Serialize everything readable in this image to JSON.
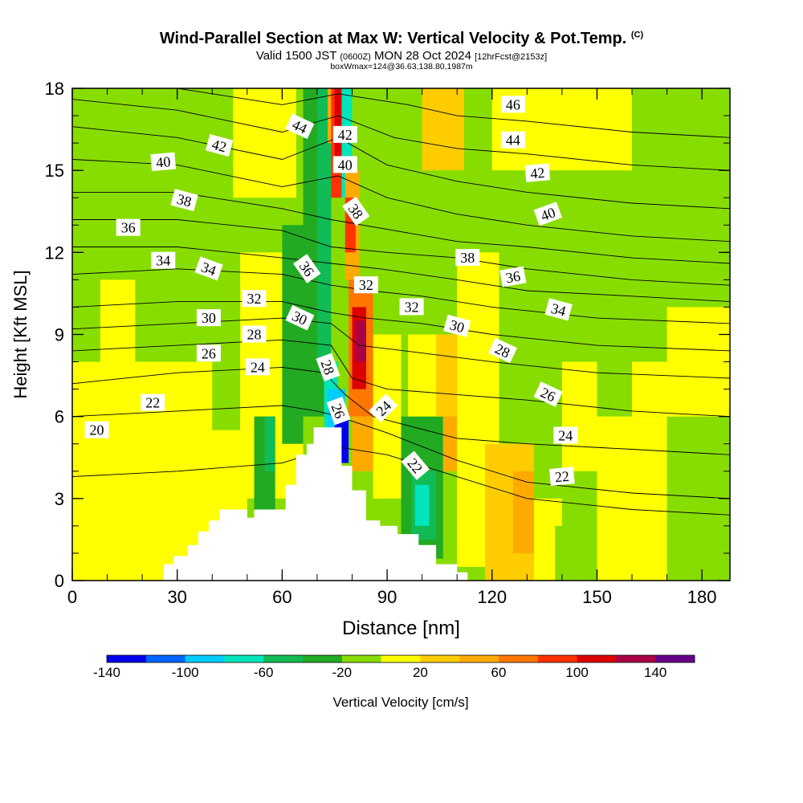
{
  "header": {
    "title": "Wind-Parallel Section at Max W: Vertical Velocity & Pot.Temp.",
    "copyright_mark": "(C)",
    "valid_prefix": "Valid 1500 JST",
    "utc_time": "(0600Z)",
    "valid_date": "MON 28 Oct 2024",
    "forecast_info": "[12hrFcst@2153z]",
    "box_info": "boxWmax=124@36.63,138.80,1987m"
  },
  "colors": {
    "level_colors": [
      "#0000ee",
      "#0066ff",
      "#00ccff",
      "#00e5bb",
      "#11bb55",
      "#22aa22",
      "#88dd00",
      "#ffff00",
      "#ffcc00",
      "#ffaa00",
      "#ff7700",
      "#ff3300",
      "#dd0000",
      "#aa0044",
      "#660088"
    ],
    "terrain": "#ffffff",
    "contour": "#000000"
  },
  "chart_data": {
    "type": "heatmap",
    "title": "Wind-Parallel Section at Max W: Vertical Velocity & Pot.Temp.",
    "xlabel": "Distance [nm]",
    "ylabel": "Height [Kft MSL]",
    "xlim": [
      0,
      188
    ],
    "ylim": [
      0,
      18
    ],
    "x_ticks": [
      0,
      30,
      60,
      90,
      120,
      150,
      180
    ],
    "y_ticks": [
      0,
      3,
      6,
      9,
      12,
      15,
      18
    ],
    "colorbar": {
      "label": "Vertical Velocity [cm/s]",
      "range": [
        -140,
        160
      ],
      "step": 20,
      "tick_values": [
        -140,
        -100,
        -60,
        -20,
        20,
        60,
        100,
        140
      ]
    },
    "terrain_profile": [
      [
        0,
        0
      ],
      [
        25,
        0
      ],
      [
        26,
        0.6
      ],
      [
        29,
        0.9
      ],
      [
        33,
        1.3
      ],
      [
        36,
        1.8
      ],
      [
        39,
        2.2
      ],
      [
        42,
        2.6
      ],
      [
        48,
        2.6
      ],
      [
        50,
        2.3
      ],
      [
        52,
        2.6
      ],
      [
        58,
        2.6
      ],
      [
        61,
        3.5
      ],
      [
        64,
        4.6
      ],
      [
        67,
        5.0
      ],
      [
        69,
        5.6
      ],
      [
        75,
        5.6
      ],
      [
        77,
        4.2
      ],
      [
        80,
        3.3
      ],
      [
        84,
        2.2
      ],
      [
        88,
        2.0
      ],
      [
        93,
        1.7
      ],
      [
        99,
        1.3
      ],
      [
        104,
        0.6
      ],
      [
        110,
        0.3
      ],
      [
        113,
        0
      ],
      [
        188,
        0
      ]
    ],
    "vertical_velocity_cells": [
      {
        "x0": 0,
        "x1": 188,
        "y0": 0,
        "y1": 18,
        "value": -10
      },
      {
        "x0": 0,
        "x1": 50,
        "y0": 0,
        "y1": 5.5,
        "value": 10
      },
      {
        "x0": 0,
        "x1": 40,
        "y0": 5.5,
        "y1": 8,
        "value": 10
      },
      {
        "x0": 8,
        "x1": 18,
        "y0": 8,
        "y1": 11,
        "value": 10
      },
      {
        "x0": 20,
        "x1": 60,
        "y0": 8,
        "y1": 12,
        "value": -10
      },
      {
        "x0": 30,
        "x1": 66,
        "y0": 12,
        "y1": 18,
        "value": -10
      },
      {
        "x0": 46,
        "x1": 64,
        "y0": 14,
        "y1": 18,
        "value": 10
      },
      {
        "x0": 48,
        "x1": 66,
        "y0": 3,
        "y1": 12,
        "value": 10
      },
      {
        "x0": 52,
        "x1": 58,
        "y0": 2,
        "y1": 6,
        "value": -30
      },
      {
        "x0": 55,
        "x1": 58,
        "y0": 4,
        "y1": 6,
        "value": -50
      },
      {
        "x0": 60,
        "x1": 66,
        "y0": 5,
        "y1": 13,
        "value": -30
      },
      {
        "x0": 66,
        "x1": 72,
        "y0": 6,
        "y1": 18,
        "value": -30
      },
      {
        "x0": 70,
        "x1": 74,
        "y0": 8,
        "y1": 18,
        "value": -50
      },
      {
        "x0": 72,
        "x1": 76,
        "y0": 5,
        "y1": 8,
        "value": -70
      },
      {
        "x0": 73,
        "x1": 78,
        "y0": 4.5,
        "y1": 7,
        "value": -90
      },
      {
        "x0": 75,
        "x1": 79,
        "y0": 4.3,
        "y1": 6,
        "value": -130
      },
      {
        "x0": 73,
        "x1": 77,
        "y0": 16,
        "y1": 18,
        "value": 50
      },
      {
        "x0": 74,
        "x1": 77,
        "y0": 14,
        "y1": 18,
        "value": 90
      },
      {
        "x0": 75,
        "x1": 77,
        "y0": 15,
        "y1": 18,
        "value": 110
      },
      {
        "x0": 77,
        "x1": 80,
        "y0": 14,
        "y1": 18,
        "value": -70
      },
      {
        "x0": 78,
        "x1": 82,
        "y0": 11,
        "y1": 15,
        "value": 50
      },
      {
        "x0": 78,
        "x1": 81,
        "y0": 12,
        "y1": 14,
        "value": 90
      },
      {
        "x0": 79,
        "x1": 86,
        "y0": 6,
        "y1": 11,
        "value": 70
      },
      {
        "x0": 80,
        "x1": 84,
        "y0": 7,
        "y1": 10,
        "value": 110
      },
      {
        "x0": 81,
        "x1": 84,
        "y0": 8,
        "y1": 9.5,
        "value": 130
      },
      {
        "x0": 80,
        "x1": 88,
        "y0": 4,
        "y1": 6,
        "value": 50
      },
      {
        "x0": 86,
        "x1": 94,
        "y0": 3,
        "y1": 9,
        "value": 10
      },
      {
        "x0": 94,
        "x1": 106,
        "y0": 0.8,
        "y1": 6,
        "value": -30
      },
      {
        "x0": 97,
        "x1": 104,
        "y0": 1.5,
        "y1": 4,
        "value": -50
      },
      {
        "x0": 98,
        "x1": 102,
        "y0": 2,
        "y1": 3.5,
        "value": -70
      },
      {
        "x0": 96,
        "x1": 112,
        "y0": 6,
        "y1": 9,
        "value": 10
      },
      {
        "x0": 104,
        "x1": 112,
        "y0": 6,
        "y1": 9,
        "value": 30
      },
      {
        "x0": 100,
        "x1": 112,
        "y0": 15,
        "y1": 18,
        "value": 30
      },
      {
        "x0": 106,
        "x1": 114,
        "y0": 4,
        "y1": 6,
        "value": 50
      },
      {
        "x0": 110,
        "x1": 122,
        "y0": 0.5,
        "y1": 12,
        "value": 10
      },
      {
        "x0": 118,
        "x1": 132,
        "y0": 0,
        "y1": 5,
        "value": 30
      },
      {
        "x0": 126,
        "x1": 132,
        "y0": 1,
        "y1": 4,
        "value": 50
      },
      {
        "x0": 132,
        "x1": 140,
        "y0": 0,
        "y1": 3,
        "value": 10
      },
      {
        "x0": 138,
        "x1": 144,
        "y0": 0,
        "y1": 2,
        "value": -10
      },
      {
        "x0": 140,
        "x1": 150,
        "y0": 4,
        "y1": 8,
        "value": 10
      },
      {
        "x0": 150,
        "x1": 170,
        "y0": 0,
        "y1": 6,
        "value": 10
      },
      {
        "x0": 160,
        "x1": 175,
        "y0": 6,
        "y1": 8,
        "value": 10
      },
      {
        "x0": 120,
        "x1": 160,
        "y0": 15,
        "y1": 18,
        "value": 10
      },
      {
        "x0": 170,
        "x1": 188,
        "y0": 6,
        "y1": 10,
        "value": 10
      },
      {
        "x0": 176,
        "x1": 188,
        "y0": 12,
        "y1": 18,
        "value": -10
      }
    ],
    "isentropes": [
      {
        "theta": 20,
        "points": [
          [
            0,
            3.8
          ],
          [
            30,
            4.0
          ],
          [
            60,
            4.3
          ],
          [
            75,
            4.9
          ],
          [
            90,
            4.6
          ],
          [
            110,
            3.8
          ],
          [
            130,
            3.0
          ],
          [
            160,
            2.6
          ],
          [
            188,
            2.4
          ]
        ]
      },
      {
        "theta": 22,
        "points": [
          [
            0,
            6.0
          ],
          [
            30,
            6.2
          ],
          [
            60,
            6.4
          ],
          [
            70,
            6.2
          ],
          [
            76,
            6.0
          ],
          [
            90,
            5.4
          ],
          [
            110,
            4.4
          ],
          [
            130,
            3.6
          ],
          [
            160,
            3.2
          ],
          [
            188,
            3.0
          ]
        ]
      },
      {
        "theta": 24,
        "points": [
          [
            0,
            7.2
          ],
          [
            30,
            7.6
          ],
          [
            60,
            7.8
          ],
          [
            72,
            7.6
          ],
          [
            78,
            6.8
          ],
          [
            86,
            6.0
          ],
          [
            110,
            5.2
          ],
          [
            130,
            5.0
          ],
          [
            160,
            4.8
          ],
          [
            188,
            4.6
          ]
        ]
      },
      {
        "theta": 26,
        "points": [
          [
            0,
            8.4
          ],
          [
            30,
            8.6
          ],
          [
            60,
            8.8
          ],
          [
            74,
            8.6
          ],
          [
            80,
            7.4
          ],
          [
            90,
            7.0
          ],
          [
            110,
            6.8
          ],
          [
            130,
            6.6
          ],
          [
            160,
            6.2
          ],
          [
            188,
            6.0
          ]
        ]
      },
      {
        "theta": 28,
        "points": [
          [
            0,
            9.2
          ],
          [
            30,
            9.4
          ],
          [
            60,
            9.6
          ],
          [
            74,
            9.4
          ],
          [
            82,
            8.6
          ],
          [
            95,
            8.4
          ],
          [
            120,
            8.0
          ],
          [
            150,
            7.6
          ],
          [
            188,
            7.4
          ]
        ]
      },
      {
        "theta": 30,
        "points": [
          [
            0,
            10.0
          ],
          [
            30,
            10.2
          ],
          [
            60,
            10.2
          ],
          [
            74,
            9.8
          ],
          [
            84,
            9.6
          ],
          [
            100,
            9.4
          ],
          [
            120,
            9.0
          ],
          [
            150,
            8.6
          ],
          [
            188,
            8.4
          ]
        ]
      },
      {
        "theta": 32,
        "points": [
          [
            0,
            11.2
          ],
          [
            30,
            11.4
          ],
          [
            60,
            11.2
          ],
          [
            74,
            10.8
          ],
          [
            85,
            10.6
          ],
          [
            100,
            10.4
          ],
          [
            120,
            10.0
          ],
          [
            150,
            9.6
          ],
          [
            188,
            9.4
          ]
        ]
      },
      {
        "theta": 34,
        "points": [
          [
            0,
            12.2
          ],
          [
            30,
            12.2
          ],
          [
            60,
            11.8
          ],
          [
            74,
            11.6
          ],
          [
            88,
            11.4
          ],
          [
            110,
            11.0
          ],
          [
            130,
            10.6
          ],
          [
            160,
            10.4
          ],
          [
            188,
            10.2
          ]
        ]
      },
      {
        "theta": 36,
        "points": [
          [
            0,
            13.2
          ],
          [
            30,
            13.2
          ],
          [
            60,
            12.8
          ],
          [
            74,
            12.2
          ],
          [
            90,
            12.0
          ],
          [
            110,
            11.8
          ],
          [
            130,
            11.4
          ],
          [
            160,
            11.0
          ],
          [
            188,
            10.8
          ]
        ]
      },
      {
        "theta": 38,
        "points": [
          [
            0,
            14.2
          ],
          [
            30,
            14.2
          ],
          [
            60,
            13.6
          ],
          [
            74,
            13.2
          ],
          [
            92,
            12.8
          ],
          [
            110,
            12.4
          ],
          [
            130,
            12.2
          ],
          [
            160,
            11.8
          ],
          [
            188,
            11.6
          ]
        ]
      },
      {
        "theta": 40,
        "points": [
          [
            0,
            15.4
          ],
          [
            30,
            15.2
          ],
          [
            60,
            14.4
          ],
          [
            76,
            14.8
          ],
          [
            90,
            14.0
          ],
          [
            110,
            13.4
          ],
          [
            130,
            13.0
          ],
          [
            160,
            12.6
          ],
          [
            188,
            12.4
          ]
        ]
      },
      {
        "theta": 42,
        "points": [
          [
            0,
            16.6
          ],
          [
            30,
            16.2
          ],
          [
            60,
            15.4
          ],
          [
            76,
            16.2
          ],
          [
            90,
            15.2
          ],
          [
            110,
            14.6
          ],
          [
            130,
            14.2
          ],
          [
            160,
            13.8
          ],
          [
            188,
            13.6
          ]
        ]
      },
      {
        "theta": 44,
        "points": [
          [
            0,
            17.6
          ],
          [
            30,
            17.2
          ],
          [
            60,
            16.4
          ],
          [
            76,
            17.0
          ],
          [
            92,
            16.2
          ],
          [
            110,
            15.8
          ],
          [
            130,
            15.6
          ],
          [
            160,
            15.2
          ],
          [
            188,
            15.0
          ]
        ]
      },
      {
        "theta": 46,
        "points": [
          [
            30,
            18.0
          ],
          [
            60,
            17.4
          ],
          [
            76,
            17.8
          ],
          [
            96,
            17.4
          ],
          [
            110,
            17.0
          ],
          [
            130,
            16.8
          ],
          [
            160,
            16.4
          ],
          [
            188,
            16.2
          ]
        ]
      }
    ],
    "contour_labels": [
      {
        "text": "20",
        "x": 7,
        "y": 5.5,
        "angle": 0
      },
      {
        "text": "22",
        "x": 23,
        "y": 6.5,
        "angle": 0
      },
      {
        "text": "24",
        "x": 53,
        "y": 7.8,
        "angle": 0
      },
      {
        "text": "26",
        "x": 39,
        "y": 8.3,
        "angle": 0
      },
      {
        "text": "28",
        "x": 52,
        "y": 9.0,
        "angle": 0
      },
      {
        "text": "30",
        "x": 39,
        "y": 9.6,
        "angle": 0
      },
      {
        "text": "32",
        "x": 52,
        "y": 10.3,
        "angle": 0
      },
      {
        "text": "34",
        "x": 26,
        "y": 11.7,
        "angle": 0
      },
      {
        "text": "34",
        "x": 39,
        "y": 11.4,
        "angle": 20
      },
      {
        "text": "36",
        "x": 16,
        "y": 12.9,
        "angle": 0
      },
      {
        "text": "38",
        "x": 32,
        "y": 13.9,
        "angle": 15
      },
      {
        "text": "40",
        "x": 26,
        "y": 15.3,
        "angle": -5
      },
      {
        "text": "42",
        "x": 42,
        "y": 15.9,
        "angle": 15
      },
      {
        "text": "44",
        "x": 65,
        "y": 16.6,
        "angle": 25
      },
      {
        "text": "42",
        "x": 78,
        "y": 16.3,
        "angle": 0
      },
      {
        "text": "40",
        "x": 78,
        "y": 15.2,
        "angle": 0
      },
      {
        "text": "38",
        "x": 81,
        "y": 13.5,
        "angle": 55
      },
      {
        "text": "36",
        "x": 67,
        "y": 11.4,
        "angle": 55
      },
      {
        "text": "32",
        "x": 84,
        "y": 10.8,
        "angle": 0
      },
      {
        "text": "30",
        "x": 65,
        "y": 9.6,
        "angle": 25
      },
      {
        "text": "28",
        "x": 73,
        "y": 7.8,
        "angle": 70
      },
      {
        "text": "26",
        "x": 76,
        "y": 6.2,
        "angle": 70
      },
      {
        "text": "24",
        "x": 89,
        "y": 6.3,
        "angle": -45
      },
      {
        "text": "22",
        "x": 98,
        "y": 4.2,
        "angle": 50
      },
      {
        "text": "32",
        "x": 97,
        "y": 10.0,
        "angle": 0
      },
      {
        "text": "30",
        "x": 110,
        "y": 9.3,
        "angle": 15
      },
      {
        "text": "28",
        "x": 123,
        "y": 8.4,
        "angle": 25
      },
      {
        "text": "26",
        "x": 136,
        "y": 6.8,
        "angle": 25
      },
      {
        "text": "24",
        "x": 141,
        "y": 5.3,
        "angle": 0
      },
      {
        "text": "22",
        "x": 140,
        "y": 3.8,
        "angle": -5
      },
      {
        "text": "38",
        "x": 113,
        "y": 11.8,
        "angle": 0
      },
      {
        "text": "36",
        "x": 126,
        "y": 11.1,
        "angle": -10
      },
      {
        "text": "34",
        "x": 139,
        "y": 9.9,
        "angle": 15
      },
      {
        "text": "40",
        "x": 136,
        "y": 13.4,
        "angle": -20
      },
      {
        "text": "42",
        "x": 133,
        "y": 14.9,
        "angle": -5
      },
      {
        "text": "44",
        "x": 126,
        "y": 16.1,
        "angle": 0
      },
      {
        "text": "46",
        "x": 126,
        "y": 17.4,
        "angle": 0
      }
    ]
  }
}
